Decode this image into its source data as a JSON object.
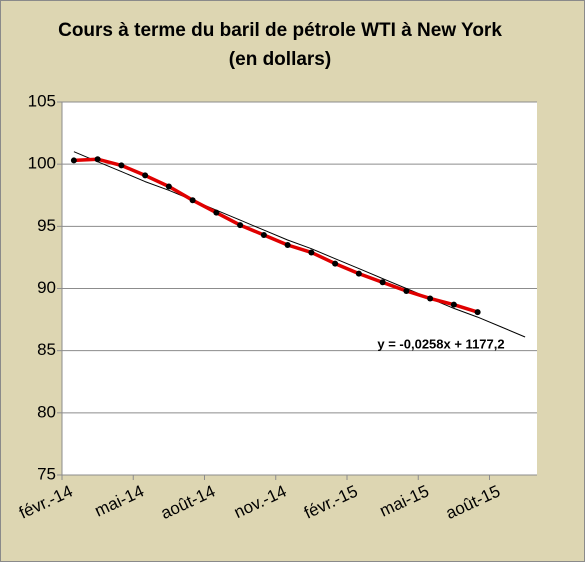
{
  "chart_data": {
    "type": "line",
    "title": "Cours à terme du baril de pétrole WTI à New York",
    "subtitle": "(en dollars)",
    "categories": [
      "févr.-14",
      null,
      null,
      "mai-14",
      null,
      null,
      "août-14",
      null,
      null,
      "nov.-14",
      null,
      null,
      "févr.-15",
      null,
      null,
      "mai-15",
      null,
      null,
      "août-15",
      null
    ],
    "series": [
      {
        "color": "#e00000",
        "marker_color": "#000000",
        "values": [
          100.3,
          100.4,
          99.9,
          99.1,
          98.2,
          97.1,
          96.1,
          95.1,
          94.3,
          93.5,
          92.9,
          92.0,
          91.2,
          90.5,
          89.8,
          89.2,
          88.7,
          88.1,
          null,
          null
        ]
      },
      {
        "color": "#000000",
        "values": [
          101.0,
          100.2,
          99.4,
          98.6,
          97.9,
          97.1,
          96.3,
          95.5,
          94.7,
          93.9,
          93.2,
          92.4,
          91.6,
          90.8,
          90.0,
          89.2,
          88.4,
          87.7,
          86.9,
          86.1
        ]
      }
    ],
    "trendline_label": "y = -0,0258x + 1177,2",
    "ylim": [
      75,
      105
    ],
    "yticks": [
      75,
      80,
      85,
      90,
      95,
      100,
      105
    ],
    "grid": true
  }
}
